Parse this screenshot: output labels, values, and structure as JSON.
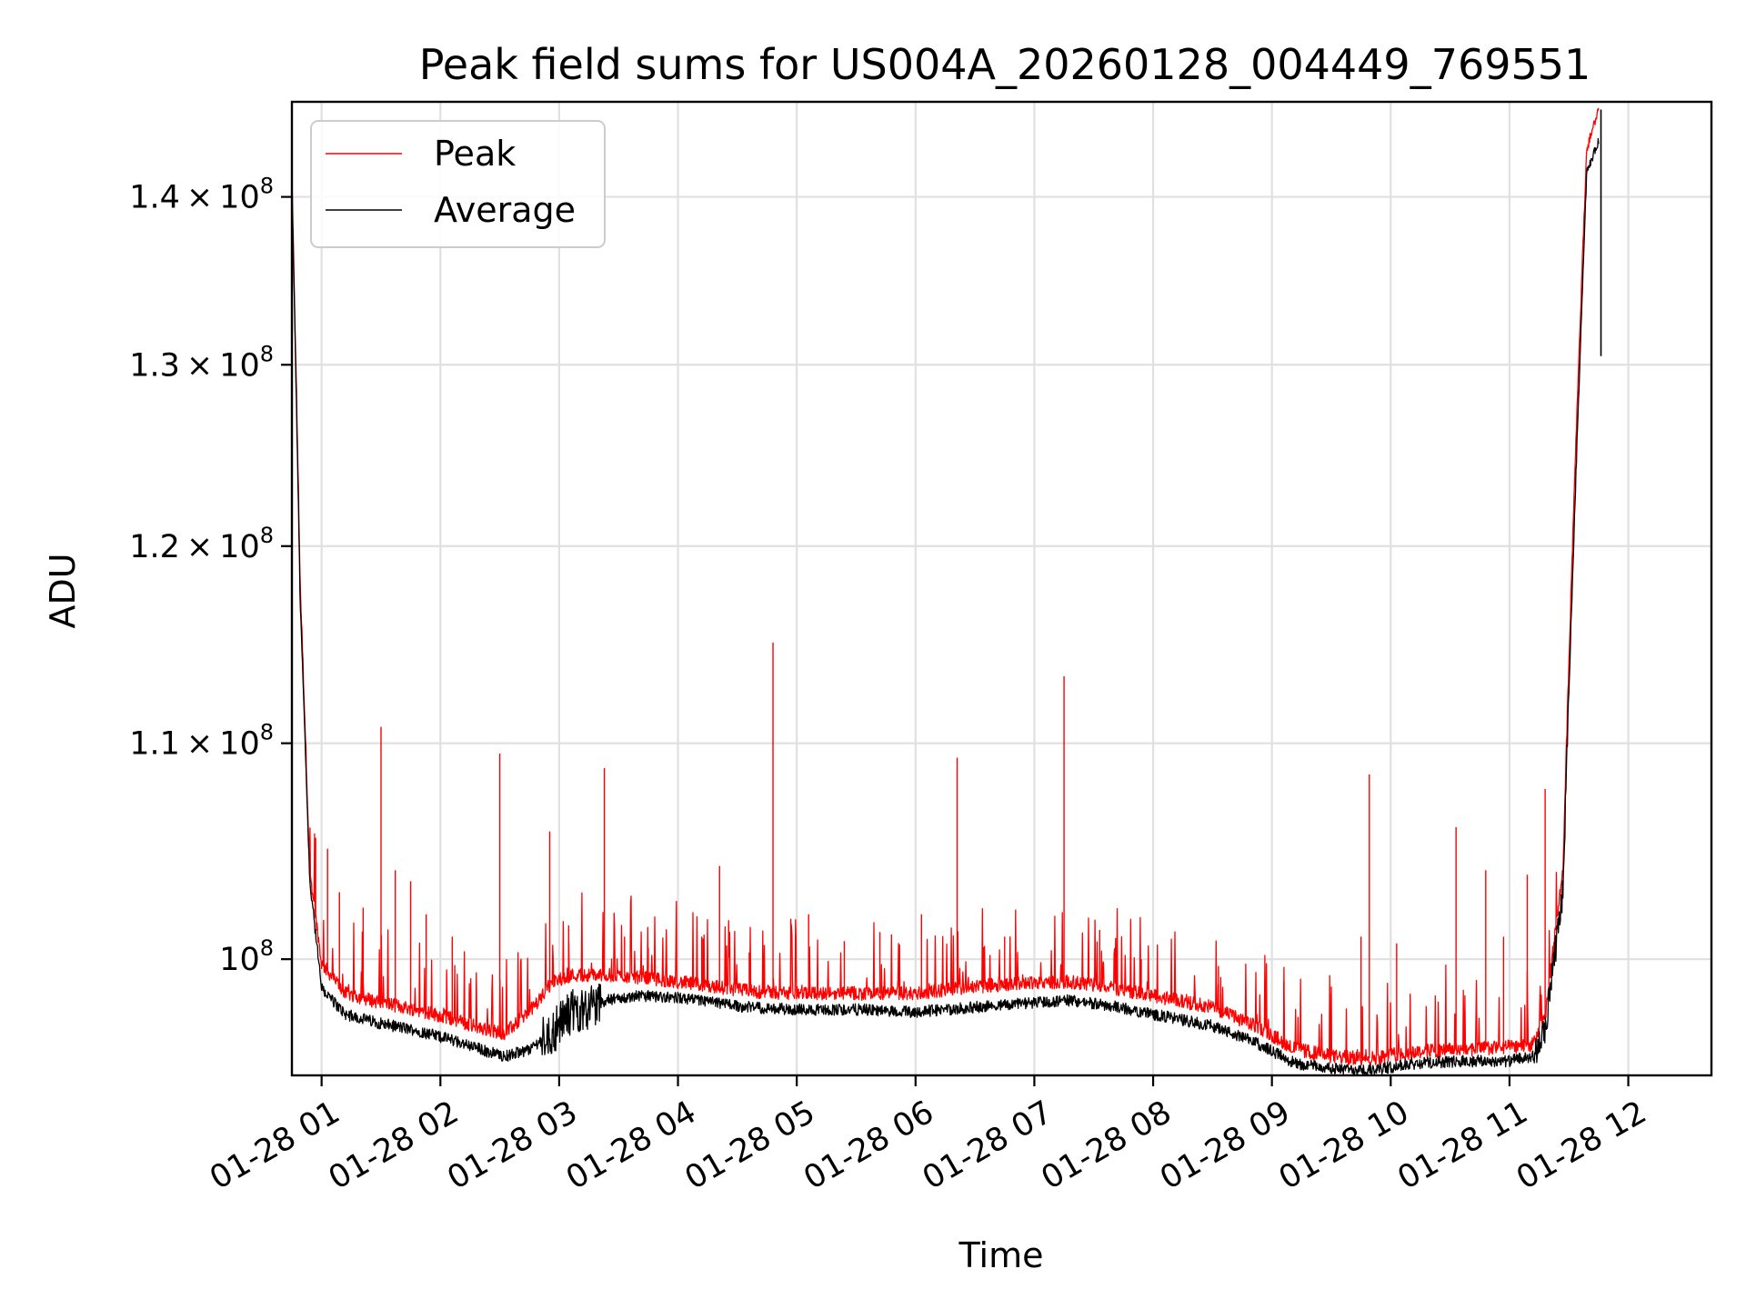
{
  "chart_data": {
    "type": "line",
    "title": "Peak field sums for US004A_20260128_004449_769551",
    "xlabel": "Time",
    "ylabel": "ADU",
    "yscale": "log",
    "xlim": [
      0.75,
      12.7
    ],
    "ylim": [
      95000000,
      146000000
    ],
    "grid": true,
    "legend_position": "top-left",
    "x_ticks": [
      {
        "value": 1,
        "label": "01-28 01"
      },
      {
        "value": 2,
        "label": "01-28 02"
      },
      {
        "value": 3,
        "label": "01-28 03"
      },
      {
        "value": 4,
        "label": "01-28 04"
      },
      {
        "value": 5,
        "label": "01-28 05"
      },
      {
        "value": 6,
        "label": "01-28 06"
      },
      {
        "value": 7,
        "label": "01-28 07"
      },
      {
        "value": 8,
        "label": "01-28 08"
      },
      {
        "value": 9,
        "label": "01-28 09"
      },
      {
        "value": 10,
        "label": "01-28 10"
      },
      {
        "value": 11,
        "label": "01-28 11"
      },
      {
        "value": 12,
        "label": "01-28 12"
      }
    ],
    "y_ticks": [
      {
        "value": 100000000,
        "mantissa": "",
        "exponent": "8"
      },
      {
        "value": 110000000,
        "mantissa": "1.1",
        "exponent": "8"
      },
      {
        "value": 120000000,
        "mantissa": "1.2",
        "exponent": "8"
      },
      {
        "value": 130000000,
        "mantissa": "1.3",
        "exponent": "8"
      },
      {
        "value": 140000000,
        "mantissa": "1.4",
        "exponent": "8"
      }
    ],
    "series": [
      {
        "name": "Peak",
        "color": "#ff0000",
        "baseline": [
          [
            0.75,
            141000000
          ],
          [
            0.82,
            118000000
          ],
          [
            0.9,
            104000000
          ],
          [
            1.0,
            99800000
          ],
          [
            1.2,
            98500000
          ],
          [
            1.5,
            98100000
          ],
          [
            1.8,
            97800000
          ],
          [
            2.1,
            97400000
          ],
          [
            2.4,
            96900000
          ],
          [
            2.55,
            96800000
          ],
          [
            2.75,
            97700000
          ],
          [
            2.95,
            99000000
          ],
          [
            3.1,
            99300000
          ],
          [
            3.4,
            99300000
          ],
          [
            3.7,
            99200000
          ],
          [
            4.0,
            99000000
          ],
          [
            4.3,
            98800000
          ],
          [
            4.6,
            98600000
          ],
          [
            5.0,
            98500000
          ],
          [
            5.5,
            98500000
          ],
          [
            6.0,
            98500000
          ],
          [
            6.5,
            98800000
          ],
          [
            7.0,
            99000000
          ],
          [
            7.3,
            99000000
          ],
          [
            7.6,
            98800000
          ],
          [
            8.0,
            98400000
          ],
          [
            8.5,
            97900000
          ],
          [
            8.9,
            97000000
          ],
          [
            9.2,
            96100000
          ],
          [
            9.5,
            95800000
          ],
          [
            9.8,
            95700000
          ],
          [
            10.2,
            96000000
          ],
          [
            10.6,
            96100000
          ],
          [
            11.0,
            96200000
          ],
          [
            11.2,
            96300000
          ],
          [
            11.3,
            97500000
          ],
          [
            11.45,
            104000000
          ],
          [
            11.55,
            124000000
          ],
          [
            11.65,
            143000000
          ],
          [
            11.75,
            145500000
          ]
        ],
        "spikes": [
          [
            0.95,
            105500000
          ],
          [
            1.05,
            105000000
          ],
          [
            1.15,
            103000000
          ],
          [
            1.35,
            102300000
          ],
          [
            1.5,
            110800000
          ],
          [
            1.62,
            104000000
          ],
          [
            1.75,
            103500000
          ],
          [
            1.88,
            102000000
          ],
          [
            2.1,
            101000000
          ],
          [
            2.5,
            109500000
          ],
          [
            2.92,
            105800000
          ],
          [
            3.08,
            101500000
          ],
          [
            3.38,
            108800000
          ],
          [
            3.55,
            101000000
          ],
          [
            3.75,
            100500000
          ],
          [
            4.2,
            101000000
          ],
          [
            4.35,
            104200000
          ],
          [
            4.6,
            100300000
          ],
          [
            4.8,
            115000000
          ],
          [
            4.95,
            101800000
          ],
          [
            5.1,
            102000000
          ],
          [
            5.4,
            100800000
          ],
          [
            5.7,
            101200000
          ],
          [
            6.05,
            102000000
          ],
          [
            6.35,
            109300000
          ],
          [
            6.75,
            101000000
          ],
          [
            7.25,
            113300000
          ],
          [
            7.55,
            101300000
          ],
          [
            7.9,
            100000000
          ],
          [
            8.55,
            99700000
          ],
          [
            9.1,
            99000000
          ],
          [
            9.5,
            98800000
          ],
          [
            9.75,
            101000000
          ],
          [
            9.82,
            108500000
          ],
          [
            10.05,
            100700000
          ],
          [
            10.55,
            106000000
          ],
          [
            10.8,
            104000000
          ],
          [
            10.95,
            101000000
          ],
          [
            11.15,
            103800000
          ],
          [
            11.3,
            107800000
          ]
        ]
      },
      {
        "name": "Average",
        "color": "#000000",
        "baseline": [
          [
            0.75,
            140500000
          ],
          [
            0.82,
            117000000
          ],
          [
            0.9,
            103500000
          ],
          [
            1.0,
            98700000
          ],
          [
            1.2,
            97600000
          ],
          [
            1.5,
            97200000
          ],
          [
            1.8,
            96900000
          ],
          [
            2.1,
            96500000
          ],
          [
            2.4,
            96000000
          ],
          [
            2.55,
            95800000
          ],
          [
            2.75,
            96100000
          ],
          [
            2.95,
            96900000
          ],
          [
            3.1,
            97700000
          ],
          [
            3.4,
            98200000
          ],
          [
            3.7,
            98400000
          ],
          [
            4.0,
            98300000
          ],
          [
            4.3,
            98100000
          ],
          [
            4.6,
            97900000
          ],
          [
            5.0,
            97800000
          ],
          [
            5.5,
            97800000
          ],
          [
            6.0,
            97700000
          ],
          [
            6.5,
            97900000
          ],
          [
            7.0,
            98100000
          ],
          [
            7.3,
            98200000
          ],
          [
            7.6,
            98000000
          ],
          [
            8.0,
            97600000
          ],
          [
            8.5,
            97100000
          ],
          [
            8.9,
            96300000
          ],
          [
            9.2,
            95500000
          ],
          [
            9.5,
            95300000
          ],
          [
            9.8,
            95200000
          ],
          [
            10.2,
            95500000
          ],
          [
            10.6,
            95600000
          ],
          [
            11.0,
            95600000
          ],
          [
            11.2,
            95800000
          ],
          [
            11.3,
            96800000
          ],
          [
            11.45,
            103000000
          ],
          [
            11.55,
            122000000
          ],
          [
            11.65,
            141500000
          ],
          [
            11.75,
            143500000
          ]
        ]
      }
    ]
  }
}
